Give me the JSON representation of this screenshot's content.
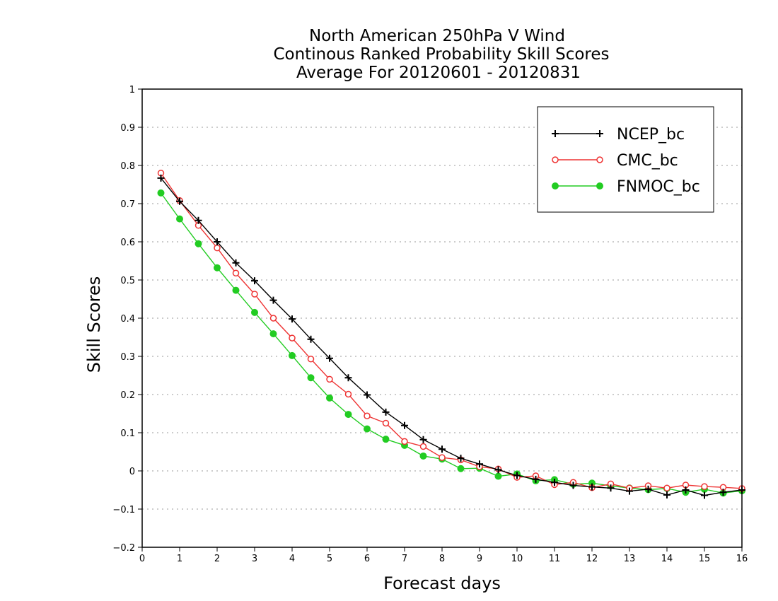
{
  "chart_data": {
    "type": "line",
    "title_lines": [
      "North American 250hPa V Wind",
      "Continous Ranked Probability Skill Scores",
      "Average For 20120601  -  20120831"
    ],
    "xlabel": "Forecast days",
    "ylabel": "Skill Scores",
    "xlim": [
      0,
      16
    ],
    "ylim": [
      -0.2,
      1
    ],
    "x_ticks": [
      "0",
      "1",
      "2",
      "3",
      "4",
      "5",
      "6",
      "7",
      "8",
      "9",
      "10",
      "11",
      "12",
      "13",
      "14",
      "15",
      "16"
    ],
    "y_ticks": [
      "1",
      "0.9",
      "0.8",
      "0.7",
      "0.6",
      "0.5",
      "0.4",
      "0.3",
      "0.2",
      "0.1",
      "0",
      "−0.1",
      "−0.2"
    ],
    "grid": "dotted horizontal",
    "legend_position": "top-right",
    "x": [
      0.5,
      1,
      1.5,
      2,
      2.5,
      3,
      3.5,
      4,
      4.5,
      5,
      5.5,
      6,
      6.5,
      7,
      7.5,
      8,
      8.5,
      9,
      9.5,
      10,
      10.5,
      11,
      11.5,
      12,
      12.5,
      13,
      13.5,
      14,
      14.5,
      15,
      15.5,
      16
    ],
    "series": [
      {
        "name": "NCEP_bc",
        "color": "#000000",
        "marker": "plus",
        "values": [
          0.767,
          0.706,
          0.656,
          0.6,
          0.545,
          0.498,
          0.447,
          0.398,
          0.345,
          0.295,
          0.244,
          0.199,
          0.154,
          0.119,
          0.082,
          0.057,
          0.033,
          0.018,
          0.003,
          -0.012,
          -0.022,
          -0.03,
          -0.038,
          -0.042,
          -0.045,
          -0.053,
          -0.048,
          -0.063,
          -0.05,
          -0.064,
          -0.056,
          -0.05
        ]
      },
      {
        "name": "CMC_bc",
        "color": "#ee3333",
        "marker": "open-circle",
        "values": [
          0.78,
          0.708,
          0.643,
          0.584,
          0.518,
          0.463,
          0.4,
          0.348,
          0.293,
          0.24,
          0.201,
          0.144,
          0.125,
          0.077,
          0.064,
          0.035,
          0.029,
          0.011,
          0.005,
          -0.017,
          -0.013,
          -0.036,
          -0.03,
          -0.044,
          -0.034,
          -0.045,
          -0.039,
          -0.045,
          -0.037,
          -0.041,
          -0.043,
          -0.046
        ]
      },
      {
        "name": "FNMOC_bc",
        "color": "#22cc22",
        "marker": "filled-circle",
        "values": [
          0.728,
          0.66,
          0.595,
          0.532,
          0.473,
          0.415,
          0.359,
          0.302,
          0.244,
          0.191,
          0.148,
          0.11,
          0.083,
          0.067,
          0.039,
          0.031,
          0.006,
          0.007,
          -0.014,
          -0.008,
          -0.026,
          -0.023,
          -0.035,
          -0.032,
          -0.039,
          -0.045,
          -0.049,
          -0.046,
          -0.056,
          -0.048,
          -0.058,
          -0.052
        ]
      }
    ]
  }
}
